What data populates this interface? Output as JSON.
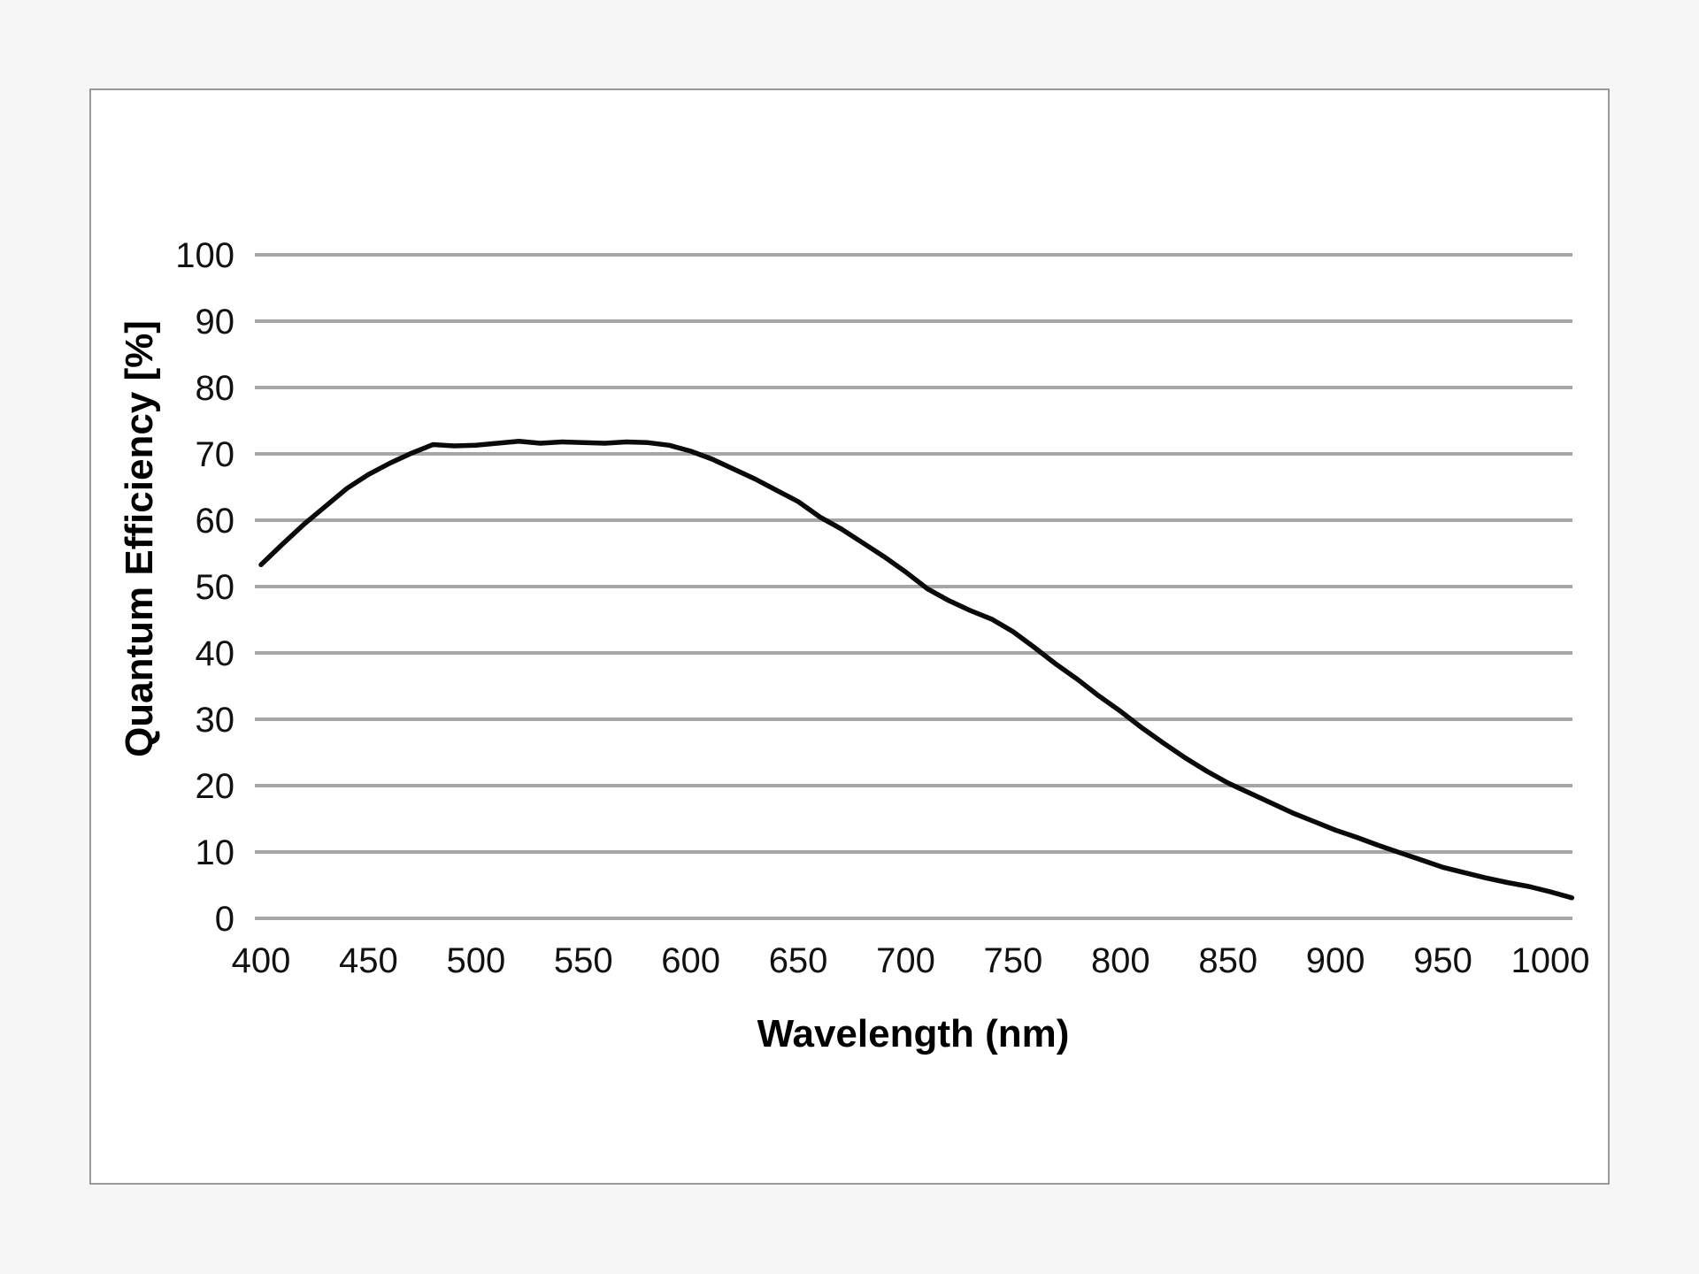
{
  "figure": {
    "background_color": "#f6f6f6",
    "panel_background_color": "#ffffff",
    "panel_border_color": "#999999"
  },
  "chart_data": {
    "type": "line",
    "title": "",
    "xlabel": "Wavelength (nm)",
    "ylabel": "Quantum Efficiency [%]",
    "xlim": [
      397,
      1010
    ],
    "ylim": [
      0,
      100
    ],
    "x_ticks": [
      400,
      450,
      500,
      550,
      600,
      650,
      700,
      750,
      800,
      850,
      900,
      950,
      1000
    ],
    "y_ticks": [
      0,
      10,
      20,
      30,
      40,
      50,
      60,
      70,
      80,
      90,
      100
    ],
    "grid": "horizontal-only",
    "grid_color": "#a6a6a6",
    "legend": "none",
    "series": [
      {
        "name": "Quantum Efficiency",
        "color": "#0a0a0a",
        "x": [
          400,
          410,
          420,
          430,
          440,
          450,
          460,
          470,
          480,
          490,
          500,
          510,
          520,
          530,
          540,
          550,
          560,
          570,
          580,
          590,
          600,
          610,
          620,
          630,
          640,
          650,
          660,
          670,
          680,
          690,
          700,
          710,
          720,
          730,
          740,
          750,
          760,
          770,
          780,
          790,
          800,
          810,
          820,
          830,
          840,
          850,
          860,
          870,
          880,
          890,
          900,
          910,
          920,
          930,
          940,
          950,
          960,
          970,
          980,
          990,
          1000,
          1010
        ],
        "y": [
          53.3,
          56.4,
          59.4,
          62.1,
          64.8,
          66.9,
          68.6,
          70.1,
          71.4,
          71.2,
          71.3,
          71.6,
          71.9,
          71.6,
          71.8,
          71.7,
          71.6,
          71.8,
          71.7,
          71.3,
          70.4,
          69.2,
          67.7,
          66.2,
          64.5,
          62.8,
          60.5,
          58.7,
          56.6,
          54.5,
          52.2,
          49.7,
          47.9,
          46.4,
          45.1,
          43.2,
          40.8,
          38.3,
          36.0,
          33.5,
          31.2,
          28.7,
          26.4,
          24.2,
          22.2,
          20.4,
          18.9,
          17.4,
          15.9,
          14.6,
          13.3,
          12.2,
          11.0,
          9.9,
          8.8,
          7.7,
          6.9,
          6.1,
          5.4,
          4.8,
          4.0,
          3.1
        ]
      }
    ]
  }
}
